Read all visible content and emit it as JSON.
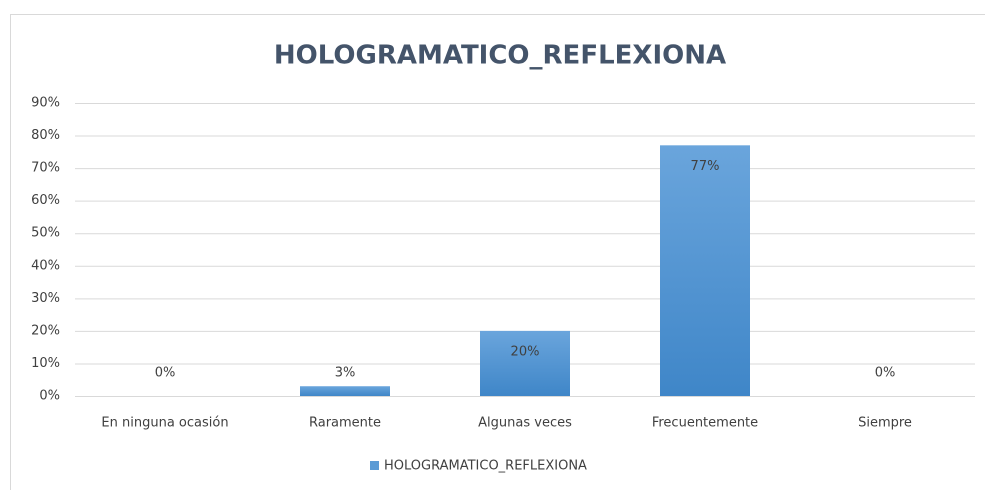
{
  "chart_data": {
    "type": "bar",
    "title": "HOLOGRAMATICO_REFLEXIONA",
    "categories": [
      "En ninguna ocasión",
      "Raramente",
      "Algunas veces",
      "Frecuentemente",
      "Siempre"
    ],
    "series": [
      {
        "name": "HOLOGRAMATICO_REFLEXIONA",
        "color": "#5b9bd5",
        "values": [
          0,
          3,
          20,
          77,
          0
        ],
        "value_labels": [
          "0%",
          "3%",
          "20%",
          "77%",
          "0%"
        ]
      }
    ],
    "ylim": [
      0,
      90
    ],
    "yticks": [
      {
        "value": 0,
        "label": "0%"
      },
      {
        "value": 10,
        "label": "10%"
      },
      {
        "value": 20,
        "label": "20%"
      },
      {
        "value": 30,
        "label": "30%"
      },
      {
        "value": 40,
        "label": "40%"
      },
      {
        "value": 50,
        "label": "50%"
      },
      {
        "value": 60,
        "label": "60%"
      },
      {
        "value": 70,
        "label": "70%"
      },
      {
        "value": 80,
        "label": "80%"
      },
      {
        "value": 90,
        "label": "90%"
      }
    ],
    "grid": true,
    "legend": "bottom"
  }
}
